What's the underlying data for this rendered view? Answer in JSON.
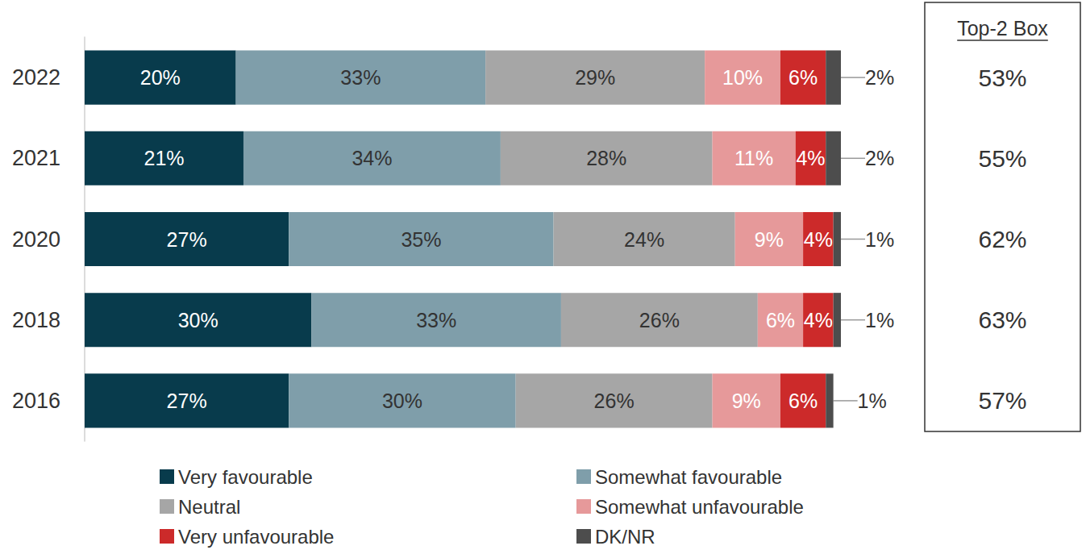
{
  "chart_data": {
    "type": "bar",
    "orientation": "horizontal",
    "stacked": true,
    "data_labels": true,
    "tick_labels": "y",
    "legend": "bottom",
    "categories": [
      "2022",
      "2021",
      "2020",
      "2018",
      "2016"
    ],
    "xlim": [
      0,
      100
    ],
    "series": [
      {
        "name": "Very favourable",
        "color": "#083b4c",
        "values": [
          20,
          21,
          27,
          30,
          27
        ],
        "value_labels": [
          "20%",
          "21%",
          "27%",
          "30%",
          "27%"
        ]
      },
      {
        "name": "Somewhat favourable",
        "color": "#7f9eaa",
        "values": [
          33,
          34,
          35,
          33,
          30
        ],
        "value_labels": [
          "33%",
          "34%",
          "35%",
          "33%",
          "30%"
        ]
      },
      {
        "name": "Neutral",
        "color": "#a6a6a6",
        "values": [
          29,
          28,
          24,
          26,
          26
        ],
        "value_labels": [
          "29%",
          "28%",
          "24%",
          "26%",
          "26%"
        ]
      },
      {
        "name": "Somewhat unfavourable",
        "color": "#e6999a",
        "values": [
          10,
          11,
          9,
          6,
          9
        ],
        "value_labels": [
          "10%",
          "11%",
          "9%",
          "6%",
          "9%"
        ]
      },
      {
        "name": "Very unfavourable",
        "color": "#cc2a2a",
        "values": [
          6,
          4,
          4,
          4,
          6
        ],
        "value_labels": [
          "6%",
          "4%",
          "4%",
          "4%",
          "6%"
        ]
      },
      {
        "name": "DK/NR",
        "color": "#4d4d4d",
        "values": [
          2,
          2,
          1,
          1,
          1
        ],
        "value_labels": [
          "2%",
          "2%",
          "1%",
          "1%",
          "1%"
        ]
      }
    ],
    "top2_box": {
      "title": "Top-2 Box",
      "values": [
        53,
        55,
        62,
        63,
        57
      ],
      "value_labels": [
        "53%",
        "55%",
        "62%",
        "63%",
        "57%"
      ]
    }
  }
}
